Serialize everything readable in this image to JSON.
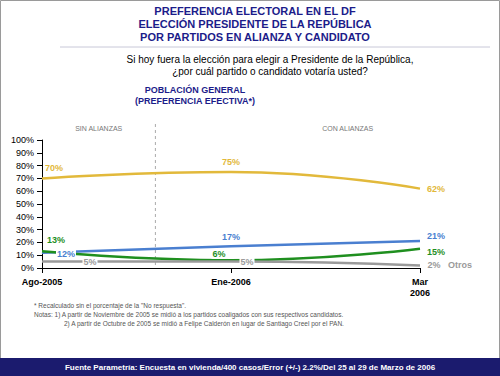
{
  "header": {
    "title": [
      "PREFERENCIA ELECTORAL EN EL DF",
      "ELECCIÓN PRESIDENTE DE LA REPÚBLICA",
      "POR PARTIDOS EN ALIANZA Y CANDIDATO"
    ],
    "question": [
      "Si hoy fuera la elección para elegir a Presidente de la República,",
      "¿por cuál partido o candidato votaría usted?"
    ]
  },
  "chart_data": {
    "type": "line",
    "title": "POBLACIÓN GENERAL",
    "subtitle": "(PREFERENCIA EFECTIVA*)",
    "annotations": [
      "SIN ALIANZAS",
      "CON ALIANZAS"
    ],
    "categories": [
      "Ago-2005",
      "Ene-2006",
      "Mar\n2006"
    ],
    "series": [
      {
        "color": "#e2b93b",
        "values": [
          70,
          75,
          62
        ],
        "value_labels": [
          "70%",
          "75%",
          "62%"
        ]
      },
      {
        "color": "#4a7fd0",
        "values": [
          12,
          17,
          21
        ],
        "value_labels": [
          "12%",
          "17%",
          "21%"
        ]
      },
      {
        "color": "#1f8f1f",
        "values": [
          13,
          6,
          15
        ],
        "value_labels": [
          "13%",
          "6%",
          "15%"
        ]
      },
      {
        "name": "Otros",
        "color": "#9a9a9a",
        "values": [
          5,
          5,
          2
        ],
        "value_labels": [
          "5%",
          "5%",
          "2%"
        ]
      }
    ],
    "ylim": [
      0,
      100
    ],
    "yticks": [
      {
        "value": 0,
        "label": "0%"
      },
      {
        "value": 10,
        "label": "10%"
      },
      {
        "value": 20,
        "label": "20%"
      },
      {
        "value": 30,
        "label": "30%"
      },
      {
        "value": 40,
        "label": "40%"
      },
      {
        "value": 50,
        "label": "50%"
      },
      {
        "value": 60,
        "label": "60%"
      },
      {
        "value": 70,
        "label": "70%"
      },
      {
        "value": 80,
        "label": "80%"
      },
      {
        "value": 90,
        "label": "90%"
      },
      {
        "value": 100,
        "label": "100%"
      }
    ],
    "grid": false,
    "data_labels": true,
    "line_style": "solid"
  },
  "footer": {
    "notes": [
      "* Recalculado sin el porcentaje de la \"No respuesta\".",
      "Notas: 1) A partir de Noviembre de 2005 se midió a los partidos coaligados con sus respectivos candidatos.",
      "2) A partir de Octubre de 2005 se midió a Felipe Calderón en lugar de Santiago Creel por el PAN."
    ],
    "source": "Fuente Parametría: Encuesta en vivienda/400 casos/Error (+/-) 2.2%/Del 25 al 29 de Marzo de 2006"
  }
}
